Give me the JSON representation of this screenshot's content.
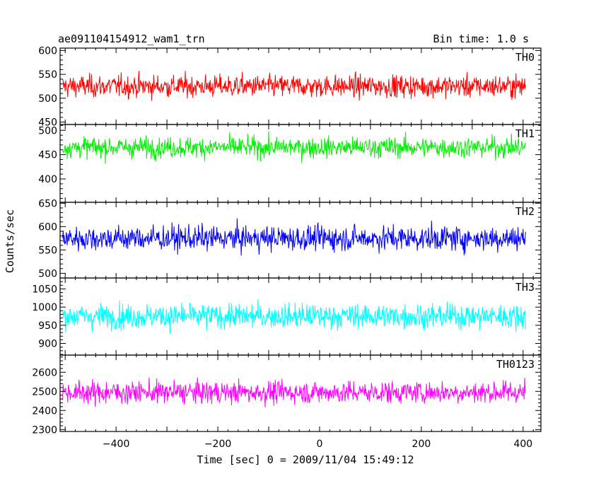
{
  "header": {
    "title": "ae091104154912_wam1_trn",
    "bin_time": "Bin time: 1.0 s"
  },
  "chart_data": {
    "type": "line",
    "title": "ae091104154912_wam1_trn",
    "subtitle": "Bin time: 1.0 s",
    "xlabel": "Time [sec] 0 = 2009/11/04 15:49:12",
    "ylabel": "Counts/sec",
    "xlim": [
      -510,
      435
    ],
    "x_ticks": [
      -400,
      -200,
      0,
      200,
      400
    ],
    "x_tick_labels": [
      "−400",
      "−200",
      "0",
      "200",
      "400"
    ],
    "x_range_data": [
      -505,
      405
    ],
    "bin_time": 1.0,
    "grid": false,
    "series": [
      {
        "name": "TH0",
        "color": "#ff0000",
        "ylim": [
          445,
          605
        ],
        "yticks": [
          450,
          500,
          550,
          600
        ],
        "ytick_labels": [
          "450",
          "500",
          "550",
          "600"
        ],
        "mean": 525,
        "spread": 22
      },
      {
        "name": "TH1",
        "color": "#00ee00",
        "ylim": [
          352,
          512
        ],
        "yticks": [
          400,
          450,
          500
        ],
        "ytick_labels": [
          "400",
          "450",
          "500"
        ],
        "mean": 465,
        "spread": 20
      },
      {
        "name": "TH2",
        "color": "#0000ff",
        "ylim": [
          490,
          652
        ],
        "yticks": [
          500,
          550,
          600,
          650
        ],
        "ytick_labels": [
          "500",
          "550",
          "600",
          "650"
        ],
        "mean": 575,
        "spread": 25
      },
      {
        "name": "TH3",
        "color": "#00ffff",
        "ylim": [
          868,
          1080
        ],
        "yticks": [
          900,
          950,
          1000,
          1050
        ],
        "ytick_labels": [
          "900",
          "950",
          "1000",
          "1050"
        ],
        "mean": 975,
        "spread": 32
      },
      {
        "name": "TH0123",
        "color": "#ff00ff",
        "ylim": [
          2290,
          2690
        ],
        "yticks": [
          2300,
          2400,
          2500,
          2600
        ],
        "ytick_labels": [
          "2300",
          "2400",
          "2500",
          "2600"
        ],
        "mean": 2495,
        "spread": 55
      }
    ]
  }
}
